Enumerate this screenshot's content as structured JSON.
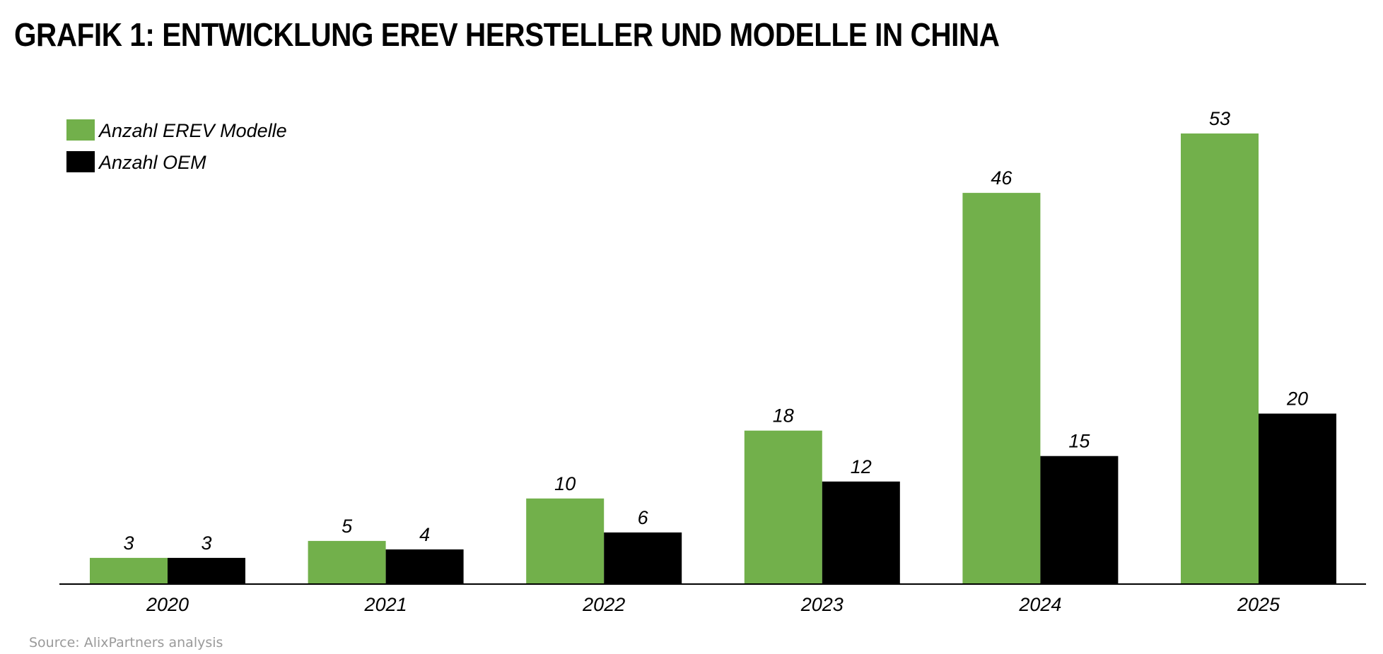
{
  "title": "GRAFIK 1: ENTWICKLUNG EREV HERSTELLER UND MODELLE IN CHINA",
  "source": "Source: AlixPartners analysis",
  "colors": {
    "models": "#72b04b",
    "oem": "#000000",
    "axis": "#000000",
    "source_text": "#9a9a9a"
  },
  "chart_data": {
    "type": "bar",
    "title": "GRAFIK 1: ENTWICKLUNG EREV HERSTELLER UND MODELLE IN CHINA",
    "categories": [
      "2020",
      "2021",
      "2022",
      "2023",
      "2024",
      "2025"
    ],
    "series": [
      {
        "name": "Anzahl EREV Modelle",
        "color": "#72b04b",
        "values": [
          3,
          5,
          10,
          18,
          46,
          53
        ]
      },
      {
        "name": "Anzahl OEM",
        "color": "#000000",
        "values": [
          3,
          4,
          6,
          12,
          15,
          20
        ]
      }
    ],
    "xlabel": "",
    "ylabel": "",
    "ylim": [
      0,
      53
    ],
    "grid": false,
    "legend_position": "top-left",
    "data_labels": true
  }
}
